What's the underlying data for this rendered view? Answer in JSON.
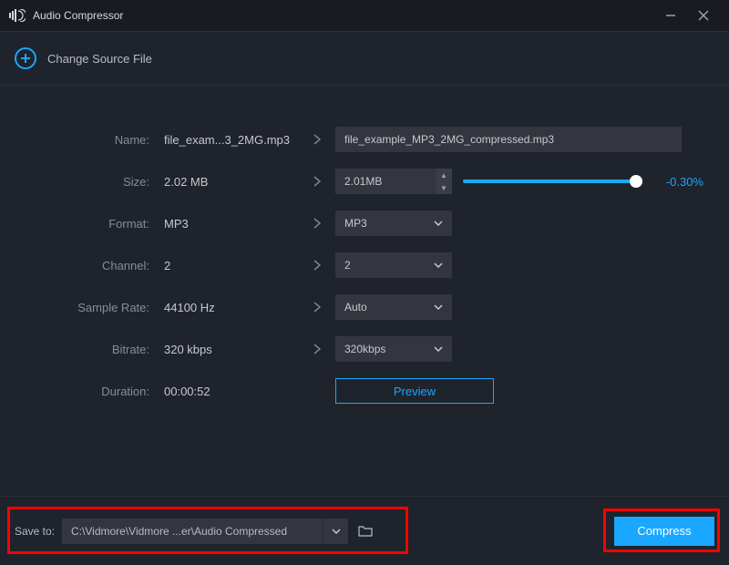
{
  "app": {
    "title": "Audio Compressor"
  },
  "source": {
    "change_label": "Change Source File"
  },
  "labels": {
    "name": "Name:",
    "size": "Size:",
    "format": "Format:",
    "channel": "Channel:",
    "samplerate": "Sample Rate:",
    "bitrate": "Bitrate:",
    "duration": "Duration:",
    "saveto": "Save to:"
  },
  "vals": {
    "name": "file_exam...3_2MG.mp3",
    "size": "2.02 MB",
    "format": "MP3",
    "channel": "2",
    "samplerate": "44100 Hz",
    "bitrate": "320 kbps",
    "duration": "00:00:52"
  },
  "out": {
    "name": "file_example_MP3_2MG_compressed.mp3",
    "size": "2.01MB",
    "size_pct_text": "-0.30%",
    "size_slider_pct": 97,
    "format": "MP3",
    "channel": "2",
    "samplerate": "Auto",
    "bitrate": "320kbps"
  },
  "buttons": {
    "preview": "Preview",
    "compress": "Compress"
  },
  "save": {
    "path": "C:\\Vidmore\\Vidmore ...er\\Audio Compressed"
  },
  "colors": {
    "accent": "#1aa7ff",
    "bg": "#1f232b",
    "field": "#33363e",
    "annot": "#ff0000"
  }
}
